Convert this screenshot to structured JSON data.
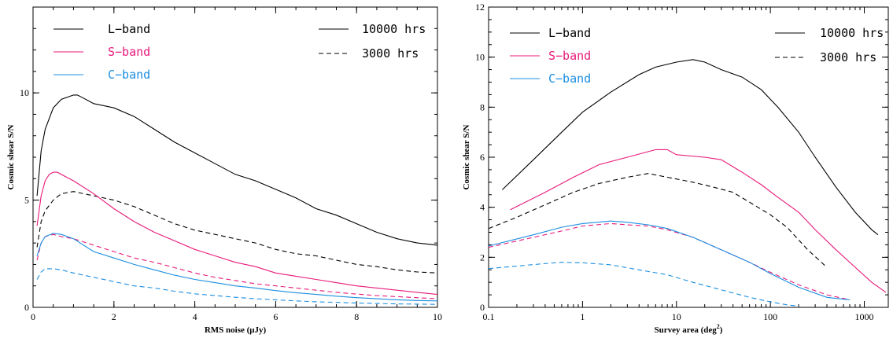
{
  "colors": {
    "L": "#000000",
    "S": "#e8197a",
    "C": "#1b8ee0"
  },
  "chart_data": [
    {
      "type": "line",
      "xlabel": "RMS noise (μJy)",
      "ylabel": "Cosmic shear S/N",
      "xlim": [
        0,
        10
      ],
      "ylim": [
        0,
        14
      ],
      "xscale": "linear",
      "xticks": [
        0,
        2,
        4,
        6,
        8,
        10
      ],
      "xtick_labels": [
        "0",
        "2",
        "4",
        "6",
        "8",
        "10"
      ],
      "yticks": [
        0,
        5,
        10
      ],
      "ytick_labels": [
        "0",
        "5",
        "10"
      ],
      "legend": {
        "bands": [
          {
            "key": "L",
            "label": "L−band"
          },
          {
            "key": "S",
            "label": "S−band"
          },
          {
            "key": "C",
            "label": "C−band"
          }
        ],
        "durations": [
          {
            "style": "solid",
            "label": "10000 hrs"
          },
          {
            "style": "dashed",
            "label": "3000 hrs"
          }
        ]
      },
      "series": [
        {
          "band": "L",
          "hours": "10000",
          "style": "solid",
          "x": [
            0.1,
            0.2,
            0.3,
            0.5,
            0.7,
            1.0,
            1.1,
            1.3,
            1.5,
            2,
            2.5,
            3,
            3.5,
            4,
            4.5,
            5,
            5.5,
            6,
            6.5,
            7,
            7.5,
            8,
            8.5,
            9,
            9.5,
            10
          ],
          "y": [
            5.2,
            7.3,
            8.3,
            9.3,
            9.7,
            9.9,
            9.9,
            9.7,
            9.5,
            9.3,
            8.9,
            8.3,
            7.7,
            7.2,
            6.7,
            6.2,
            5.9,
            5.5,
            5.1,
            4.6,
            4.3,
            3.9,
            3.5,
            3.2,
            3.0,
            2.9
          ]
        },
        {
          "band": "L",
          "hours": "3000",
          "style": "dashed",
          "x": [
            0.1,
            0.2,
            0.3,
            0.5,
            0.7,
            1.0,
            1.5,
            2,
            2.5,
            3,
            3.5,
            4,
            4.5,
            5,
            5.5,
            6,
            6.5,
            7,
            7.5,
            8,
            8.5,
            9,
            9.5,
            10
          ],
          "y": [
            2.8,
            4.0,
            4.5,
            5.0,
            5.3,
            5.4,
            5.2,
            5.0,
            4.7,
            4.3,
            3.9,
            3.6,
            3.4,
            3.2,
            3.0,
            2.7,
            2.5,
            2.4,
            2.2,
            2.0,
            1.9,
            1.75,
            1.65,
            1.6
          ]
        },
        {
          "band": "S",
          "hours": "10000",
          "style": "solid",
          "x": [
            0.1,
            0.2,
            0.3,
            0.4,
            0.5,
            0.6,
            0.8,
            1.0,
            1.5,
            2,
            2.5,
            3,
            3.5,
            4,
            4.5,
            5,
            5.5,
            6,
            6.5,
            7,
            7.5,
            8,
            8.5,
            9,
            9.5,
            10
          ],
          "y": [
            3.8,
            5.2,
            5.9,
            6.2,
            6.3,
            6.3,
            6.1,
            5.9,
            5.3,
            4.6,
            4.0,
            3.5,
            3.1,
            2.7,
            2.4,
            2.1,
            1.9,
            1.6,
            1.45,
            1.3,
            1.15,
            1.0,
            0.9,
            0.8,
            0.7,
            0.6
          ]
        },
        {
          "band": "S",
          "hours": "3000",
          "style": "dashed",
          "x": [
            0.1,
            0.2,
            0.3,
            0.5,
            0.7,
            1.0,
            1.5,
            2,
            2.5,
            3,
            3.5,
            4,
            4.5,
            5,
            5.5,
            6,
            6.5,
            7,
            7.5,
            8,
            8.5,
            9,
            9.5,
            10
          ],
          "y": [
            2.2,
            3.0,
            3.3,
            3.4,
            3.3,
            3.2,
            2.9,
            2.6,
            2.3,
            2.1,
            1.85,
            1.6,
            1.4,
            1.25,
            1.1,
            1.0,
            0.9,
            0.8,
            0.7,
            0.62,
            0.55,
            0.5,
            0.45,
            0.4
          ]
        },
        {
          "band": "C",
          "hours": "10000",
          "style": "solid",
          "x": [
            0.1,
            0.2,
            0.3,
            0.5,
            0.7,
            1.0,
            1.5,
            2,
            2.5,
            3,
            3.5,
            4,
            4.5,
            5,
            5.5,
            6,
            6.5,
            7,
            7.5,
            8,
            8.5,
            9,
            9.5,
            10
          ],
          "y": [
            2.4,
            3.0,
            3.3,
            3.45,
            3.4,
            3.2,
            2.6,
            2.3,
            2.0,
            1.75,
            1.5,
            1.3,
            1.15,
            1.0,
            0.9,
            0.78,
            0.68,
            0.6,
            0.52,
            0.45,
            0.4,
            0.35,
            0.32,
            0.3
          ]
        },
        {
          "band": "C",
          "hours": "3000",
          "style": "dashed",
          "x": [
            0.1,
            0.2,
            0.3,
            0.5,
            0.7,
            1.0,
            1.5,
            2,
            2.5,
            3,
            3.5,
            4,
            4.5,
            5,
            5.5,
            6,
            6.5,
            7,
            7.5,
            8,
            8.5,
            9,
            9.5,
            10
          ],
          "y": [
            1.3,
            1.65,
            1.8,
            1.8,
            1.75,
            1.6,
            1.4,
            1.2,
            1.0,
            0.9,
            0.75,
            0.63,
            0.55,
            0.47,
            0.4,
            0.35,
            0.3,
            0.26,
            0.23,
            0.2,
            0.18,
            0.16,
            0.15,
            0.14
          ]
        }
      ]
    },
    {
      "type": "line",
      "xlabel": "Survey area (deg",
      "xlabel_sup": "2",
      "xlabel_end": ")",
      "ylabel": "Cosmic shear S/N",
      "xlim": [
        0.1,
        1800
      ],
      "ylim": [
        0,
        12
      ],
      "xscale": "log",
      "xticks": [
        0.1,
        1,
        10,
        100,
        1000
      ],
      "xtick_labels": [
        "0.1",
        "1",
        "10",
        "100",
        "1000"
      ],
      "yticks": [
        0,
        2,
        4,
        6,
        8,
        10,
        12
      ],
      "ytick_labels": [
        "0",
        "2",
        "4",
        "6",
        "8",
        "10",
        "12"
      ],
      "legend": {
        "bands": [
          {
            "key": "L",
            "label": "L−band"
          },
          {
            "key": "S",
            "label": "S−band"
          },
          {
            "key": "C",
            "label": "C−band"
          }
        ],
        "durations": [
          {
            "style": "solid",
            "label": "10000 hrs"
          },
          {
            "style": "dashed",
            "label": "3000 hrs"
          }
        ]
      },
      "series": [
        {
          "band": "L",
          "hours": "10000",
          "style": "solid",
          "x": [
            0.14,
            0.3,
            0.6,
            1,
            2,
            4,
            6,
            10,
            15,
            20,
            30,
            50,
            80,
            120,
            200,
            300,
            500,
            800,
            1200,
            1400
          ],
          "y": [
            4.7,
            5.9,
            7.0,
            7.8,
            8.6,
            9.3,
            9.6,
            9.8,
            9.9,
            9.8,
            9.5,
            9.2,
            8.7,
            8.0,
            7.0,
            6.0,
            4.8,
            3.8,
            3.1,
            2.9
          ]
        },
        {
          "band": "L",
          "hours": "3000",
          "style": "dashed",
          "x": [
            0.1,
            0.2,
            0.4,
            0.8,
            1.5,
            3,
            5,
            8,
            15,
            25,
            40,
            60,
            100,
            150,
            250,
            400
          ],
          "y": [
            3.15,
            3.6,
            4.1,
            4.6,
            4.95,
            5.2,
            5.35,
            5.2,
            5.0,
            4.8,
            4.6,
            4.2,
            3.7,
            3.2,
            2.3,
            1.6
          ]
        },
        {
          "band": "S",
          "hours": "10000",
          "style": "solid",
          "x": [
            0.17,
            0.4,
            0.8,
            1.5,
            3,
            6,
            8,
            10,
            20,
            30,
            50,
            80,
            120,
            200,
            300,
            500,
            800,
            1200,
            1700
          ],
          "y": [
            3.9,
            4.6,
            5.2,
            5.7,
            6.0,
            6.3,
            6.3,
            6.1,
            6.0,
            5.9,
            5.4,
            4.9,
            4.4,
            3.8,
            3.1,
            2.3,
            1.6,
            1.0,
            0.6
          ]
        },
        {
          "band": "S",
          "hours": "3000",
          "style": "dashed",
          "x": [
            0.1,
            0.3,
            0.6,
            1,
            2,
            3,
            5,
            8,
            15,
            30,
            60,
            100,
            200,
            400,
            700
          ],
          "y": [
            2.4,
            2.8,
            3.05,
            3.25,
            3.35,
            3.3,
            3.25,
            3.1,
            2.8,
            2.3,
            1.8,
            1.4,
            0.9,
            0.5,
            0.3
          ]
        },
        {
          "band": "C",
          "hours": "10000",
          "style": "solid",
          "x": [
            0.1,
            0.3,
            0.6,
            1,
            2,
            3,
            5,
            8,
            15,
            30,
            60,
            100,
            200,
            400,
            700
          ],
          "y": [
            2.45,
            2.9,
            3.2,
            3.35,
            3.45,
            3.4,
            3.3,
            3.15,
            2.8,
            2.3,
            1.8,
            1.35,
            0.8,
            0.4,
            0.3
          ]
        },
        {
          "band": "C",
          "hours": "3000",
          "style": "dashed",
          "x": [
            0.1,
            0.2,
            0.4,
            0.6,
            1,
            2,
            4,
            8,
            15,
            30,
            60,
            100,
            150,
            200
          ],
          "y": [
            1.55,
            1.65,
            1.75,
            1.8,
            1.78,
            1.7,
            1.5,
            1.3,
            1.0,
            0.7,
            0.4,
            0.22,
            0.1,
            0.05
          ]
        }
      ]
    }
  ]
}
